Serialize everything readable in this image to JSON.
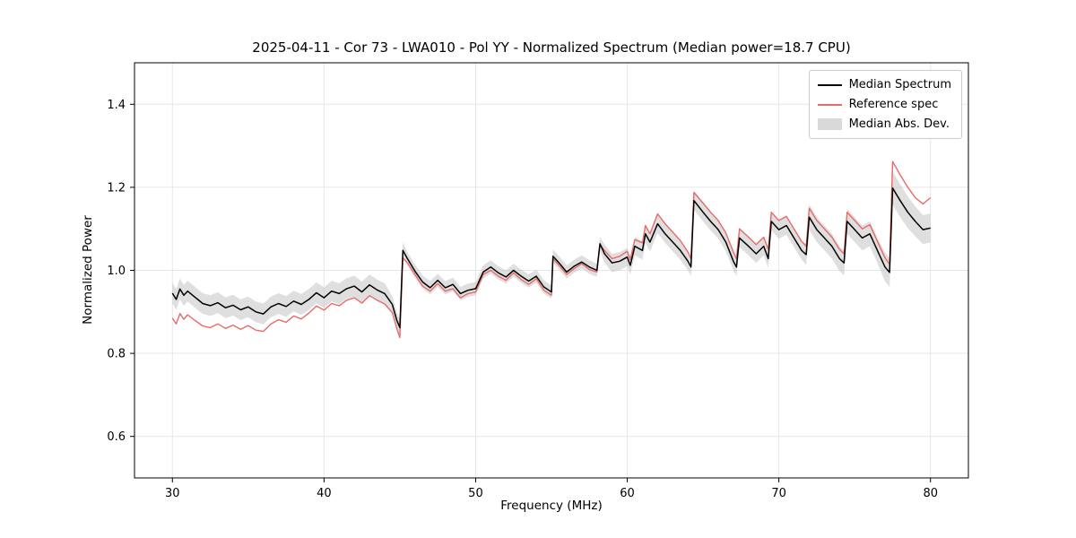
{
  "colors": {
    "median": "#000000",
    "reference": "#e86a6a",
    "band": "#c4c4c4",
    "grid": "#e6e6e6",
    "spine": "#000000"
  },
  "chart_data": {
    "type": "line",
    "title": "2025-04-11 - Cor 73 - LWA010 - Pol YY - Normalized Spectrum (Median power=18.7 CPU)",
    "xlabel": "Frequency (MHz)",
    "ylabel": "Normalized Power",
    "xlim": [
      27.5,
      82.5
    ],
    "ylim": [
      0.5,
      1.5
    ],
    "xticks": [
      30,
      40,
      50,
      60,
      70,
      80
    ],
    "yticks": [
      0.6,
      0.8,
      1.0,
      1.2,
      1.4
    ],
    "grid": true,
    "legend_position": "upper right",
    "series": [
      {
        "name": "Median Spectrum",
        "color": "#000000",
        "style": "line"
      },
      {
        "name": "Reference spec",
        "color": "#e86a6a",
        "style": "line"
      },
      {
        "name": "Median Abs. Dev.",
        "color": "#c4c4c4",
        "style": "band"
      }
    ],
    "x": [
      30,
      30.25,
      30.5,
      30.75,
      31,
      31.5,
      32,
      32.5,
      33,
      33.5,
      34,
      34.5,
      35,
      35.5,
      36,
      36.5,
      37,
      37.5,
      38,
      38.5,
      39,
      39.5,
      40,
      40.5,
      41,
      41.5,
      42,
      42.5,
      43,
      43.5,
      44,
      44.5,
      44.8,
      45,
      45.2,
      45.5,
      46,
      46.5,
      47,
      47.5,
      48,
      48.5,
      49,
      49.5,
      50,
      50.5,
      51,
      51.5,
      52,
      52.5,
      53,
      53.5,
      54,
      54.5,
      55,
      55.1,
      55.5,
      56,
      56.5,
      57,
      57.5,
      58,
      58.2,
      58.5,
      59,
      59.5,
      60,
      60.2,
      60.5,
      61,
      61.2,
      61.5,
      62,
      62.5,
      63,
      63.5,
      64,
      64.2,
      64.4,
      65,
      65.5,
      66,
      66.5,
      67,
      67.2,
      67.4,
      68,
      68.5,
      69,
      69.3,
      69.5,
      70,
      70.5,
      71,
      71.5,
      71.8,
      72,
      72.5,
      73,
      73.5,
      74,
      74.3,
      74.5,
      75,
      75.5,
      76,
      76.5,
      77,
      77.3,
      77.5,
      78,
      78.5,
      79,
      79.5,
      80
    ],
    "median": [
      0.945,
      0.93,
      0.955,
      0.94,
      0.95,
      0.935,
      0.92,
      0.915,
      0.922,
      0.91,
      0.916,
      0.905,
      0.912,
      0.9,
      0.895,
      0.912,
      0.92,
      0.913,
      0.926,
      0.918,
      0.93,
      0.946,
      0.934,
      0.95,
      0.944,
      0.956,
      0.962,
      0.948,
      0.965,
      0.953,
      0.944,
      0.918,
      0.88,
      0.862,
      1.048,
      1.028,
      0.998,
      0.972,
      0.958,
      0.976,
      0.958,
      0.966,
      0.944,
      0.952,
      0.956,
      0.996,
      1.008,
      0.994,
      0.984,
      1.0,
      0.986,
      0.974,
      0.986,
      0.96,
      0.948,
      1.034,
      1.018,
      0.996,
      1.01,
      1.02,
      1.008,
      1.0,
      1.064,
      1.04,
      1.018,
      1.022,
      1.032,
      1.012,
      1.058,
      1.048,
      1.088,
      1.068,
      1.112,
      1.088,
      1.068,
      1.048,
      1.022,
      1.008,
      1.168,
      1.14,
      1.118,
      1.098,
      1.068,
      1.022,
      1.008,
      1.078,
      1.058,
      1.04,
      1.058,
      1.028,
      1.118,
      1.098,
      1.108,
      1.078,
      1.048,
      1.038,
      1.128,
      1.098,
      1.078,
      1.058,
      1.028,
      1.018,
      1.118,
      1.098,
      1.078,
      1.088,
      1.048,
      1.008,
      0.995,
      1.198,
      1.168,
      1.14,
      1.118,
      1.098,
      1.102
    ],
    "reference": [
      0.885,
      0.871,
      0.896,
      0.882,
      0.893,
      0.879,
      0.866,
      0.862,
      0.871,
      0.86,
      0.868,
      0.858,
      0.867,
      0.856,
      0.853,
      0.871,
      0.881,
      0.875,
      0.89,
      0.883,
      0.897,
      0.914,
      0.904,
      0.92,
      0.915,
      0.928,
      0.934,
      0.921,
      0.939,
      0.928,
      0.919,
      0.898,
      0.86,
      0.838,
      1.03,
      1.018,
      0.99,
      0.962,
      0.95,
      0.968,
      0.95,
      0.956,
      0.934,
      0.944,
      0.948,
      0.99,
      1.0,
      0.986,
      0.976,
      0.994,
      0.978,
      0.966,
      0.98,
      0.952,
      0.94,
      1.028,
      1.012,
      0.99,
      1.004,
      1.016,
      1.002,
      0.996,
      1.062,
      1.048,
      1.028,
      1.034,
      1.046,
      1.026,
      1.074,
      1.066,
      1.108,
      1.088,
      1.136,
      1.112,
      1.092,
      1.072,
      1.044,
      1.028,
      1.188,
      1.162,
      1.14,
      1.12,
      1.09,
      1.044,
      1.028,
      1.1,
      1.08,
      1.062,
      1.08,
      1.05,
      1.14,
      1.12,
      1.13,
      1.1,
      1.07,
      1.058,
      1.15,
      1.12,
      1.1,
      1.08,
      1.05,
      1.04,
      1.14,
      1.12,
      1.1,
      1.11,
      1.07,
      1.03,
      1.015,
      1.262,
      1.23,
      1.2,
      1.175,
      1.16,
      1.175
    ],
    "mad": [
      0.025,
      0.025,
      0.025,
      0.025,
      0.025,
      0.025,
      0.025,
      0.025,
      0.025,
      0.025,
      0.025,
      0.025,
      0.025,
      0.025,
      0.025,
      0.025,
      0.025,
      0.025,
      0.025,
      0.025,
      0.025,
      0.025,
      0.025,
      0.025,
      0.025,
      0.025,
      0.025,
      0.025,
      0.025,
      0.025,
      0.025,
      0.02,
      0.02,
      0.02,
      0.02,
      0.016,
      0.016,
      0.016,
      0.016,
      0.016,
      0.016,
      0.016,
      0.016,
      0.016,
      0.016,
      0.016,
      0.016,
      0.016,
      0.016,
      0.016,
      0.016,
      0.016,
      0.016,
      0.016,
      0.016,
      0.016,
      0.016,
      0.016,
      0.016,
      0.016,
      0.016,
      0.016,
      0.016,
      0.022,
      0.022,
      0.022,
      0.022,
      0.022,
      0.022,
      0.022,
      0.022,
      0.022,
      0.022,
      0.022,
      0.022,
      0.022,
      0.022,
      0.022,
      0.022,
      0.022,
      0.022,
      0.022,
      0.022,
      0.022,
      0.022,
      0.022,
      0.022,
      0.022,
      0.022,
      0.022,
      0.022,
      0.022,
      0.022,
      0.022,
      0.022,
      0.025,
      0.03,
      0.03,
      0.03,
      0.03,
      0.03,
      0.03,
      0.03,
      0.03,
      0.03,
      0.03,
      0.03,
      0.035,
      0.035,
      0.04,
      0.04,
      0.038,
      0.036,
      0.035,
      0.035
    ]
  }
}
